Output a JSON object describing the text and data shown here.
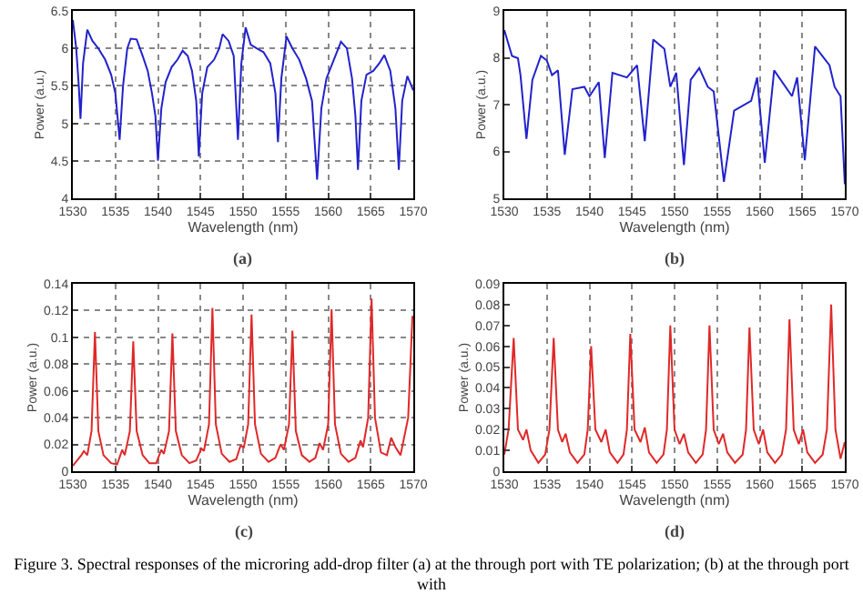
{
  "chart_data": [
    {
      "type": "line",
      "xlabel": "Wavelength (nm)",
      "ylabel": "Power (a.u.)",
      "annotations": [
        "(a)"
      ],
      "xlim": [
        1530,
        1570
      ],
      "xticks": [
        1530,
        1535,
        1540,
        1545,
        1550,
        1555,
        1560,
        1565,
        1570
      ],
      "ylim": [
        4,
        6.5
      ],
      "yticks": [
        4,
        4.5,
        5,
        5.5,
        6,
        6.5
      ],
      "grid": true,
      "line_style": "solid",
      "series": [
        {
          "color": "#2222cc",
          "x": [
            1530,
            1530.4,
            1530.7,
            1530.9,
            1531.2,
            1531.7,
            1532.3,
            1533.0,
            1533.8,
            1534.5,
            1535.0,
            1535.5,
            1535.9,
            1536.4,
            1536.8,
            1537.5,
            1538.2,
            1538.8,
            1539.3,
            1539.7,
            1540.0,
            1540.4,
            1540.9,
            1541.6,
            1542.3,
            1542.9,
            1543.5,
            1544.0,
            1544.5,
            1544.8,
            1545.2,
            1545.8,
            1546.6,
            1547.2,
            1547.6,
            1548.3,
            1548.9,
            1549.4,
            1549.8,
            1550.3,
            1550.9,
            1551.6,
            1552.4,
            1553.2,
            1553.8,
            1554.1,
            1554.5,
            1555.1,
            1555.8,
            1556.6,
            1557.4,
            1558.1,
            1558.7,
            1559.2,
            1559.8,
            1560.5,
            1561.5,
            1562.2,
            1562.8,
            1563.2,
            1563.5,
            1563.9,
            1564.5,
            1565.3,
            1566.0,
            1566.6,
            1567.3,
            1567.9,
            1568.3,
            1568.7,
            1569.3,
            1570
          ],
          "values": [
            6.38,
            6.0,
            5.5,
            5.06,
            5.8,
            6.25,
            6.1,
            6.0,
            5.85,
            5.65,
            5.4,
            4.78,
            5.5,
            6.0,
            6.13,
            6.12,
            5.9,
            5.7,
            5.4,
            5.1,
            4.5,
            5.2,
            5.55,
            5.75,
            5.85,
            5.97,
            5.9,
            5.7,
            5.3,
            4.56,
            5.4,
            5.75,
            5.85,
            6.0,
            6.19,
            6.1,
            5.9,
            4.78,
            5.8,
            6.28,
            6.05,
            6.0,
            5.95,
            5.8,
            5.4,
            4.75,
            5.6,
            6.16,
            6.0,
            5.85,
            5.6,
            5.3,
            4.25,
            5.2,
            5.6,
            5.8,
            6.09,
            6.0,
            5.6,
            5.1,
            4.38,
            5.3,
            5.65,
            5.7,
            5.8,
            5.91,
            5.7,
            5.2,
            4.38,
            5.3,
            5.63,
            5.44
          ]
        }
      ]
    },
    {
      "type": "line",
      "xlabel": "Wavelength (nm)",
      "ylabel": "Power (a.u.)",
      "annotations": [
        "(b)"
      ],
      "xlim": [
        1530,
        1570
      ],
      "xticks": [
        1530,
        1535,
        1540,
        1545,
        1550,
        1555,
        1560,
        1565,
        1570
      ],
      "ylim": [
        5,
        9
      ],
      "yticks": [
        5,
        6,
        7,
        8,
        9
      ],
      "grid": "x",
      "line_style": "solid",
      "series": [
        {
          "color": "#2222cc",
          "x": [
            1530,
            1530.9,
            1531.6,
            1531.9,
            1532.6,
            1533.3,
            1534.3,
            1535.0,
            1535.6,
            1536.3,
            1537.1,
            1538.0,
            1539.4,
            1540.0,
            1541.1,
            1541.8,
            1542.7,
            1544.4,
            1545.6,
            1546.5,
            1547.5,
            1548.8,
            1549.5,
            1550.2,
            1551.1,
            1551.9,
            1552.9,
            1553.9,
            1554.6,
            1555.8,
            1557.0,
            1559.0,
            1559.7,
            1560.6,
            1561.7,
            1563.8,
            1564.4,
            1565.3,
            1566.5,
            1568.2,
            1568.8,
            1569.5,
            1570
          ],
          "values": [
            8.59,
            8.04,
            7.99,
            7.63,
            6.27,
            7.53,
            8.04,
            7.94,
            7.63,
            7.73,
            5.93,
            7.33,
            7.38,
            7.18,
            7.48,
            5.86,
            7.68,
            7.58,
            7.84,
            6.22,
            8.39,
            8.19,
            7.38,
            7.68,
            5.71,
            7.53,
            7.78,
            7.38,
            7.28,
            5.35,
            6.87,
            7.08,
            7.58,
            5.76,
            7.73,
            7.18,
            7.58,
            5.81,
            8.24,
            7.84,
            7.38,
            7.18,
            5.3
          ]
        }
      ]
    },
    {
      "type": "line",
      "xlabel": "Wavelength (nm)",
      "ylabel": "Power (a.u.)",
      "annotations": [
        "(c)"
      ],
      "xlim": [
        1530,
        1570
      ],
      "xticks": [
        1530,
        1535,
        1540,
        1545,
        1550,
        1555,
        1560,
        1565,
        1570
      ],
      "ylim": [
        0,
        0.14
      ],
      "yticks": [
        0,
        0.02,
        0.04,
        0.06,
        0.08,
        0.1,
        0.12,
        0.14
      ],
      "grid": true,
      "line_style": "solid",
      "series": [
        {
          "color": "#e02828",
          "x": [
            1530,
            1531.0,
            1531.3,
            1531.7,
            1532.2,
            1532.6,
            1533.0,
            1533.6,
            1534.5,
            1535.2,
            1535.8,
            1536.1,
            1536.7,
            1537.1,
            1537.5,
            1538.2,
            1539.0,
            1539.8,
            1540.4,
            1540.7,
            1541.3,
            1541.7,
            1542.1,
            1542.8,
            1543.7,
            1544.5,
            1545.1,
            1545.4,
            1546.0,
            1546.4,
            1546.8,
            1547.5,
            1548.4,
            1549.2,
            1549.7,
            1550.1,
            1550.6,
            1551.0,
            1551.4,
            1552.1,
            1553.0,
            1553.8,
            1554.4,
            1554.8,
            1555.4,
            1555.8,
            1556.2,
            1556.9,
            1557.8,
            1558.5,
            1559.0,
            1559.4,
            1560.0,
            1560.4,
            1560.8,
            1561.5,
            1562.4,
            1563.2,
            1563.8,
            1564.1,
            1564.7,
            1565.1,
            1565.5,
            1566.2,
            1566.9,
            1567.4,
            1567.9,
            1568.5,
            1569.4,
            1569.9
          ],
          "values": [
            0.004,
            0.012,
            0.015,
            0.012,
            0.03,
            0.104,
            0.03,
            0.012,
            0.006,
            0.005,
            0.016,
            0.012,
            0.03,
            0.097,
            0.03,
            0.012,
            0.006,
            0.006,
            0.016,
            0.013,
            0.03,
            0.103,
            0.03,
            0.012,
            0.006,
            0.008,
            0.017,
            0.015,
            0.035,
            0.122,
            0.035,
            0.013,
            0.007,
            0.009,
            0.019,
            0.018,
            0.035,
            0.117,
            0.035,
            0.013,
            0.007,
            0.01,
            0.02,
            0.016,
            0.035,
            0.105,
            0.03,
            0.012,
            0.007,
            0.01,
            0.021,
            0.016,
            0.035,
            0.121,
            0.035,
            0.013,
            0.007,
            0.01,
            0.023,
            0.018,
            0.04,
            0.129,
            0.04,
            0.014,
            0.012,
            0.025,
            0.018,
            0.012,
            0.04,
            0.116
          ]
        }
      ]
    },
    {
      "type": "line",
      "xlabel": "Wavelength (nm)",
      "ylabel": "Power (a.u.)",
      "annotations": [
        "(d)",
        "Figure 3. Spectral responses of the microring add-drop filter (a) at the through port with TE polarization; (b) at the through port with"
      ],
      "xlim": [
        1530,
        1570
      ],
      "xticks": [
        1530,
        1535,
        1540,
        1545,
        1550,
        1555,
        1560,
        1565,
        1570
      ],
      "ylim": [
        0,
        0.09
      ],
      "yticks": [
        0,
        0.01,
        0.02,
        0.03,
        0.04,
        0.05,
        0.06,
        0.07,
        0.08,
        0.09
      ],
      "grid": "x",
      "line_style": "solid",
      "series": [
        {
          "color": "#e02828",
          "x": [
            1530,
            1530.5,
            1531.1,
            1531.6,
            1532.2,
            1532.6,
            1533.1,
            1534.0,
            1534.8,
            1535.3,
            1535.8,
            1536.3,
            1536.8,
            1537.2,
            1537.7,
            1538.6,
            1539.4,
            1539.8,
            1540.2,
            1540.7,
            1541.4,
            1541.9,
            1542.4,
            1543.3,
            1544.0,
            1544.4,
            1544.8,
            1545.3,
            1546.0,
            1546.5,
            1547.0,
            1547.9,
            1548.7,
            1549.1,
            1549.5,
            1550.0,
            1550.6,
            1551.1,
            1551.6,
            1552.5,
            1553.3,
            1553.7,
            1554.1,
            1554.6,
            1555.2,
            1555.7,
            1556.2,
            1557.1,
            1558.0,
            1558.4,
            1558.8,
            1559.3,
            1559.9,
            1560.4,
            1560.9,
            1561.8,
            1562.6,
            1563.1,
            1563.5,
            1564.0,
            1564.6,
            1565.1,
            1565.6,
            1566.5,
            1567.4,
            1567.9,
            1568.4,
            1568.9,
            1569.5,
            1570
          ],
          "values": [
            0.008,
            0.02,
            0.064,
            0.02,
            0.015,
            0.02,
            0.01,
            0.004,
            0.008,
            0.02,
            0.064,
            0.02,
            0.014,
            0.018,
            0.009,
            0.004,
            0.008,
            0.02,
            0.06,
            0.02,
            0.014,
            0.02,
            0.009,
            0.004,
            0.008,
            0.02,
            0.066,
            0.02,
            0.014,
            0.021,
            0.009,
            0.004,
            0.008,
            0.02,
            0.07,
            0.02,
            0.013,
            0.018,
            0.009,
            0.004,
            0.008,
            0.02,
            0.07,
            0.02,
            0.013,
            0.018,
            0.009,
            0.004,
            0.008,
            0.02,
            0.069,
            0.02,
            0.013,
            0.02,
            0.009,
            0.004,
            0.008,
            0.02,
            0.073,
            0.02,
            0.013,
            0.02,
            0.009,
            0.004,
            0.008,
            0.02,
            0.08,
            0.02,
            0.006,
            0.014
          ]
        }
      ]
    }
  ]
}
